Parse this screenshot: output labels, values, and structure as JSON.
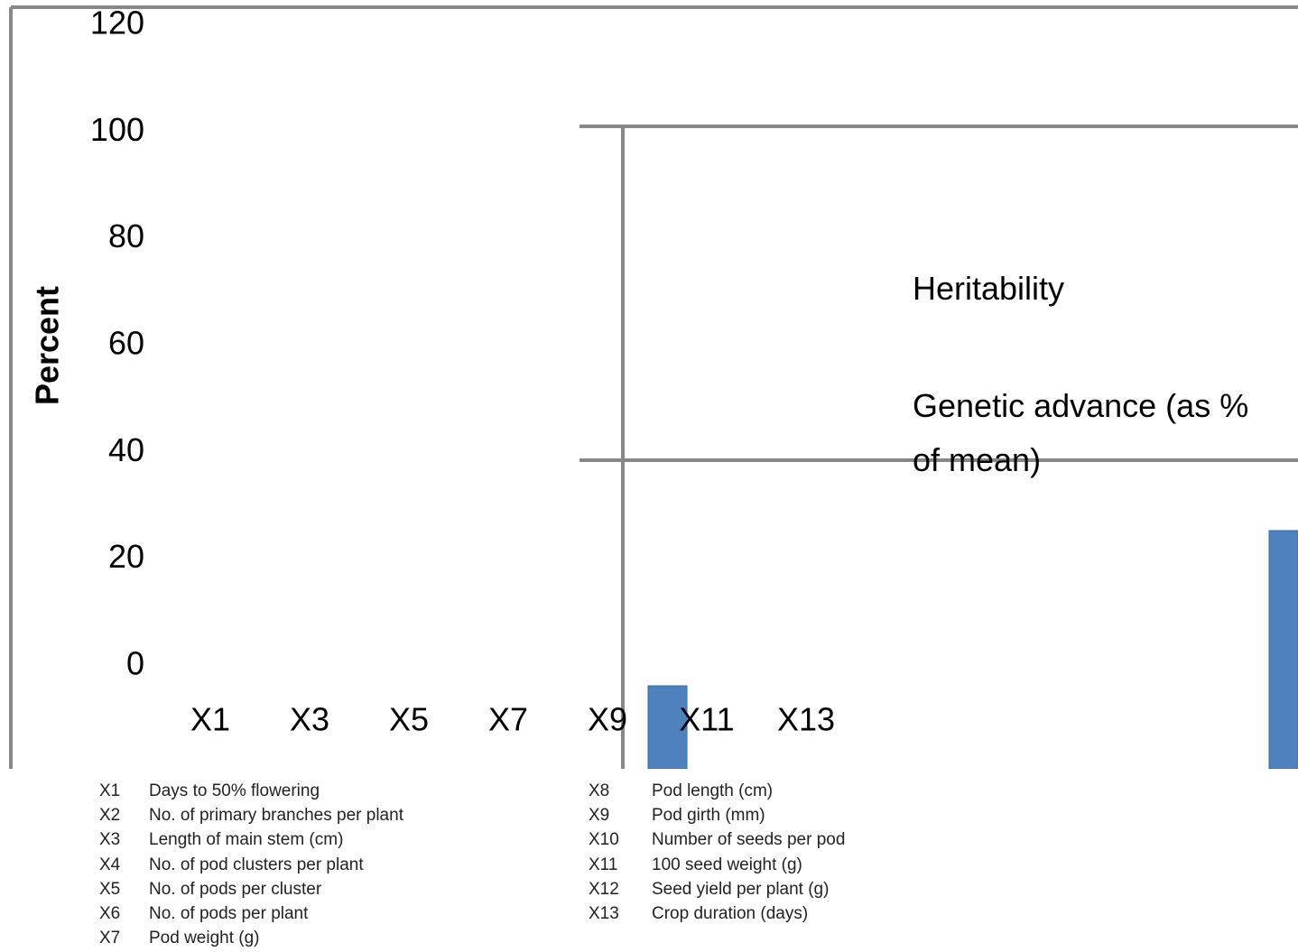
{
  "chart_data": {
    "type": "bar",
    "y_label": "Percent",
    "categories": [
      "X1",
      null,
      "X3",
      null,
      "X5",
      null,
      "X7",
      null,
      "X9",
      null,
      "X11",
      null,
      "X13"
    ],
    "series": [
      {
        "name": "Heritability",
        "color": "#4f81bd"
      },
      {
        "name": "Genetic advance (as % of mean)"
      }
    ],
    "ylim": [
      0,
      120
    ],
    "yticks": [
      0,
      20,
      40,
      60,
      80,
      100,
      120
    ],
    "grid": false
  },
  "key": {
    "left": [
      {
        "code": "X1",
        "label": "Days to 50% flowering"
      },
      {
        "code": "X2",
        "label": "No. of primary branches per plant"
      },
      {
        "code": "X3",
        "label": "Length of main stem (cm)"
      },
      {
        "code": "X4",
        "label": "No. of pod clusters per plant"
      },
      {
        "code": "X5",
        "label": "No. of pods per cluster"
      },
      {
        "code": "X6",
        "label": "No. of pods per plant"
      },
      {
        "code": "X7",
        "label": "Pod weight (g)"
      }
    ],
    "right": [
      {
        "code": "X8",
        "label": "Pod length (cm)"
      },
      {
        "code": "X9",
        "label": "Pod girth (mm)"
      },
      {
        "code": "X10",
        "label": "Number of seeds per pod"
      },
      {
        "code": "X11",
        "label": "100 seed weight (g)"
      },
      {
        "code": "X12",
        "label": "Seed yield per plant (g)"
      },
      {
        "code": "X13",
        "label": "Crop duration (days)"
      }
    ]
  }
}
